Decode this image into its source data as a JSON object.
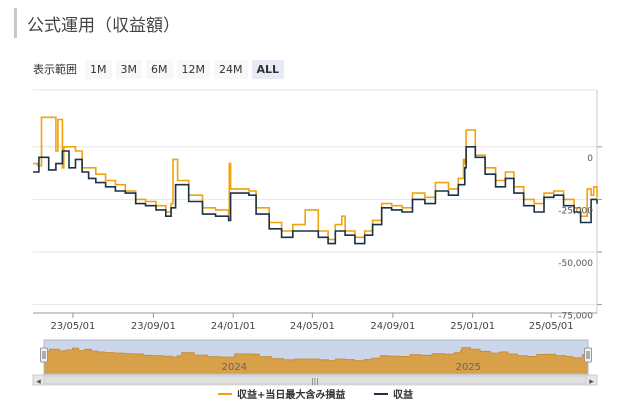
{
  "page_title": "公式運用（収益額）",
  "range_selector": {
    "label": "表示範囲",
    "buttons": [
      "1M",
      "3M",
      "6M",
      "12M",
      "24M",
      "ALL"
    ],
    "active": "ALL"
  },
  "colors": {
    "series_with_unrealized": "#f0a30a",
    "series_profit": "#1c3144",
    "navigator_fill": "#d9a04a",
    "navigator_mask": "#ccd6eb"
  },
  "chart_data": {
    "type": "line",
    "title": "",
    "x_start": "2023-03-01",
    "x_end": "2025-07-10",
    "x_tick_labels": [
      "23/05/01",
      "23/09/01",
      "24/01/01",
      "24/05/01",
      "24/09/01",
      "25/01/01",
      "25/05/01"
    ],
    "x_tick_dates": [
      "2023-05-01",
      "2023-09-01",
      "2024-01-01",
      "2024-05-01",
      "2024-09-01",
      "2025-01-01",
      "2025-05-01"
    ],
    "y_ticks": [
      0,
      -25000,
      -50000,
      -75000
    ],
    "y_tick_labels": [
      "0",
      "-25,000",
      "-50,000",
      "-75,000"
    ],
    "ylim": [
      -79000,
      27000
    ],
    "navigator_year_labels": [
      "2024",
      "2025"
    ],
    "legend": [
      "収益+当日最大含み損益",
      "収益"
    ],
    "series": [
      {
        "name": "収益",
        "x": [
          "2023-03-01",
          "2023-03-10",
          "2023-03-25",
          "2023-04-05",
          "2023-04-15",
          "2023-04-25",
          "2023-05-05",
          "2023-05-15",
          "2023-05-25",
          "2023-06-05",
          "2023-06-20",
          "2023-07-05",
          "2023-07-20",
          "2023-08-05",
          "2023-08-20",
          "2023-09-05",
          "2023-09-20",
          "2023-09-28",
          "2023-10-05",
          "2023-10-25",
          "2023-11-15",
          "2023-12-05",
          "2023-12-25",
          "2023-12-28",
          "2024-01-05",
          "2024-01-25",
          "2024-02-05",
          "2024-02-25",
          "2024-03-15",
          "2024-04-01",
          "2024-04-20",
          "2024-05-10",
          "2024-05-25",
          "2024-06-05",
          "2024-06-20",
          "2024-07-05",
          "2024-07-20",
          "2024-08-01",
          "2024-08-15",
          "2024-08-30",
          "2024-09-15",
          "2024-10-01",
          "2024-10-20",
          "2024-11-05",
          "2024-11-25",
          "2024-12-10",
          "2024-12-20",
          "2024-12-22",
          "2025-01-05",
          "2025-01-20",
          "2025-02-05",
          "2025-02-20",
          "2025-03-05",
          "2025-03-20",
          "2025-04-05",
          "2025-04-20",
          "2025-05-05",
          "2025-05-20",
          "2025-06-05",
          "2025-06-15",
          "2025-06-20",
          "2025-07-01",
          "2025-07-10"
        ],
        "y": [
          -12000,
          -5000,
          -11000,
          -8000,
          -2000,
          -10000,
          -6000,
          -12000,
          -15000,
          -17000,
          -19000,
          -21000,
          -22000,
          -27000,
          -28000,
          -30000,
          -33000,
          -29000,
          -18000,
          -26000,
          -32000,
          -33000,
          -35000,
          -22000,
          -22000,
          -23000,
          -32000,
          -39000,
          -43000,
          -40000,
          -40000,
          -43000,
          -46000,
          -40000,
          -42000,
          -46000,
          -42000,
          -37000,
          -29000,
          -30000,
          -31000,
          -25000,
          -27000,
          -21000,
          -23000,
          -18000,
          -10000,
          0,
          -5000,
          -13000,
          -19000,
          -15000,
          -22000,
          -28000,
          -31000,
          -24000,
          -23000,
          -28000,
          -31000,
          -36000,
          -36000,
          -25000,
          -27000
        ]
      },
      {
        "name": "収益+当日最大含み損益",
        "x": [
          "2023-03-01",
          "2023-03-08",
          "2023-03-14",
          "2023-04-05",
          "2023-04-08",
          "2023-04-15",
          "2023-04-17",
          "2023-05-05",
          "2023-05-15",
          "2023-06-05",
          "2023-06-20",
          "2023-07-05",
          "2023-07-20",
          "2023-08-05",
          "2023-08-20",
          "2023-09-05",
          "2023-09-20",
          "2023-09-28",
          "2023-10-01",
          "2023-10-08",
          "2023-10-25",
          "2023-11-15",
          "2023-12-05",
          "2023-12-25",
          "2023-12-26",
          "2023-12-28",
          "2024-01-05",
          "2024-01-25",
          "2024-02-05",
          "2024-02-25",
          "2024-03-15",
          "2024-04-01",
          "2024-04-20",
          "2024-05-10",
          "2024-05-25",
          "2024-06-05",
          "2024-06-15",
          "2024-06-20",
          "2024-07-05",
          "2024-07-20",
          "2024-08-01",
          "2024-08-15",
          "2024-08-30",
          "2024-09-15",
          "2024-10-01",
          "2024-10-20",
          "2024-11-05",
          "2024-11-25",
          "2024-12-10",
          "2024-12-18",
          "2024-12-20",
          "2024-12-22",
          "2025-01-05",
          "2025-01-20",
          "2025-02-05",
          "2025-02-20",
          "2025-03-05",
          "2025-03-20",
          "2025-04-05",
          "2025-04-20",
          "2025-05-05",
          "2025-05-20",
          "2025-06-05",
          "2025-06-15",
          "2025-06-20",
          "2025-06-25",
          "2025-07-01",
          "2025-07-05",
          "2025-07-10"
        ],
        "y": [
          -8000,
          -9000,
          14000,
          -2000,
          13000,
          -10000,
          0,
          -2000,
          -10000,
          -13000,
          -16000,
          -18000,
          -21000,
          -25000,
          -26000,
          -28000,
          -31000,
          -27000,
          -6000,
          -16000,
          -23000,
          -29000,
          -30000,
          -32000,
          -8000,
          -20000,
          -20000,
          -21000,
          -29000,
          -36000,
          -40000,
          -37000,
          -30000,
          -40000,
          -44000,
          -37000,
          -33000,
          -40000,
          -43000,
          -40000,
          -35000,
          -27000,
          -28000,
          -29000,
          -22000,
          -24000,
          -17000,
          -20000,
          -15000,
          -6000,
          -8000,
          8000,
          -4000,
          -10000,
          -16000,
          -12000,
          -19000,
          -25000,
          -27000,
          -22000,
          -21000,
          -25000,
          -29000,
          -33000,
          -33000,
          -20000,
          -23000,
          -19000,
          -24000
        ]
      }
    ]
  },
  "navigator": {
    "scrollbar_grip": "|||",
    "left_arrow": "◂",
    "right_arrow": "▸"
  }
}
